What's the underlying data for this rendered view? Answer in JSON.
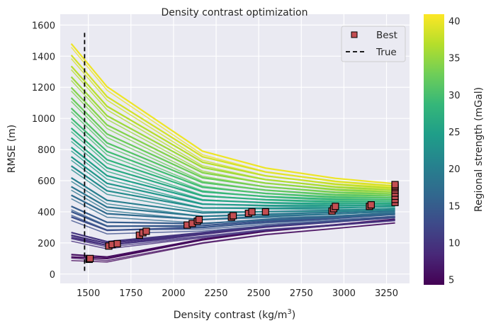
{
  "chart_data": {
    "type": "line",
    "title": "Density contrast optimization",
    "xlabel": "Density contrast (kg/m",
    "xlabel_sup": "3",
    "xlabel_end": ")",
    "ylabel": "RMSE (m)",
    "xlim": [
      1335,
      3385
    ],
    "ylim": [
      -60,
      1670
    ],
    "xticks": [
      1500,
      1750,
      2000,
      2250,
      2500,
      2750,
      3000,
      3250
    ],
    "yticks": [
      0,
      200,
      400,
      600,
      800,
      1000,
      1200,
      1400,
      1600
    ],
    "grid": true,
    "background": "#eaeaf2",
    "colorbar": {
      "label": "Regional strength (mGal)",
      "colormap": "viridis",
      "range": [
        4.3,
        40.9
      ],
      "ticks": [
        5,
        10,
        15,
        20,
        25,
        30,
        35,
        40
      ]
    },
    "x": [
      1400,
      1610,
      2170,
      2540,
      2950,
      3300
    ],
    "series": [
      {
        "strength": 5,
        "values": [
          110,
          100,
          220,
          275,
          315,
          350
        ]
      },
      {
        "strength": 5.5,
        "values": [
          125,
          110,
          224,
          278,
          317,
          352
        ]
      },
      {
        "strength": 9,
        "values": [
          234,
          185,
          256,
          302,
          335,
          365
        ]
      },
      {
        "strength": 9.5,
        "values": [
          250,
          197,
          261,
          305,
          338,
          368
        ]
      },
      {
        "strength": 10,
        "values": [
          267,
          208,
          266,
          309,
          340,
          370
        ]
      },
      {
        "strength": 13,
        "values": [
          367,
          281,
          299,
          333,
          358,
          384
        ]
      },
      {
        "strength": 14,
        "values": [
          401,
          307,
          311,
          342,
          365,
          389
        ]
      },
      {
        "strength": 15,
        "values": [
          436,
          333,
          324,
          351,
          372,
          394
        ]
      },
      {
        "strength": 17,
        "values": [
          507,
          388,
          350,
          370,
          386,
          405
        ]
      },
      {
        "strength": 18.5,
        "values": [
          562,
          430,
          371,
          385,
          397,
          413
        ]
      },
      {
        "strength": 20,
        "values": [
          619,
          474,
          393,
          401,
          409,
          422
        ]
      },
      {
        "strength": 22,
        "values": [
          695,
          535,
          425,
          423,
          425,
          435
        ]
      },
      {
        "strength": 23.5,
        "values": [
          754,
          583,
          449,
          441,
          438,
          445
        ]
      },
      {
        "strength": 25,
        "values": [
          814,
          632,
          475,
          459,
          451,
          455
        ]
      },
      {
        "strength": 26.5,
        "values": [
          875,
          683,
          502,
          478,
          465,
          466
        ]
      },
      {
        "strength": 28,
        "values": [
          938,
          735,
          529,
          498,
          480,
          477
        ]
      },
      {
        "strength": 29.5,
        "values": [
          1001,
          788,
          558,
          518,
          495,
          489
        ]
      },
      {
        "strength": 31,
        "values": [
          1066,
          843,
          588,
          539,
          510,
          501
        ]
      },
      {
        "strength": 32.5,
        "values": [
          1132,
          900,
          619,
          561,
          526,
          513
        ]
      },
      {
        "strength": 34,
        "values": [
          1199,
          958,
          651,
          584,
          543,
          526
        ]
      },
      {
        "strength": 35.5,
        "values": [
          1267,
          1017,
          685,
          607,
          560,
          539
        ]
      },
      {
        "strength": 37,
        "values": [
          1336,
          1078,
          719,
          631,
          578,
          552
        ]
      },
      {
        "strength": 38.5,
        "values": [
          1407,
          1140,
          754,
          656,
          596,
          566
        ]
      },
      {
        "strength": 40,
        "values": [
          1480,
          1204,
          790,
          681,
          615,
          580
        ]
      }
    ],
    "best": {
      "name": "Best",
      "color": "#c44e52",
      "points": [
        [
          1505,
          95
        ],
        [
          1510,
          100
        ],
        [
          1620,
          180
        ],
        [
          1640,
          190
        ],
        [
          1670,
          195
        ],
        [
          1800,
          250
        ],
        [
          1820,
          265
        ],
        [
          1840,
          275
        ],
        [
          2080,
          315
        ],
        [
          2110,
          325
        ],
        [
          2140,
          340
        ],
        [
          2150,
          350
        ],
        [
          2340,
          365
        ],
        [
          2350,
          375
        ],
        [
          2440,
          390
        ],
        [
          2460,
          400
        ],
        [
          2540,
          400
        ],
        [
          2930,
          405
        ],
        [
          2940,
          420
        ],
        [
          2950,
          435
        ],
        [
          3150,
          435
        ],
        [
          3160,
          445
        ],
        [
          3300,
          460
        ],
        [
          3300,
          480
        ],
        [
          3300,
          500
        ],
        [
          3300,
          520
        ],
        [
          3300,
          540
        ],
        [
          3300,
          555
        ],
        [
          3300,
          565
        ],
        [
          3300,
          575
        ]
      ]
    },
    "true": {
      "name": "True",
      "x": 1478,
      "y_range": [
        20,
        1550
      ],
      "color": "#000000"
    },
    "legend": {
      "placement": "top-right",
      "entries": [
        "Best",
        "True"
      ]
    }
  }
}
